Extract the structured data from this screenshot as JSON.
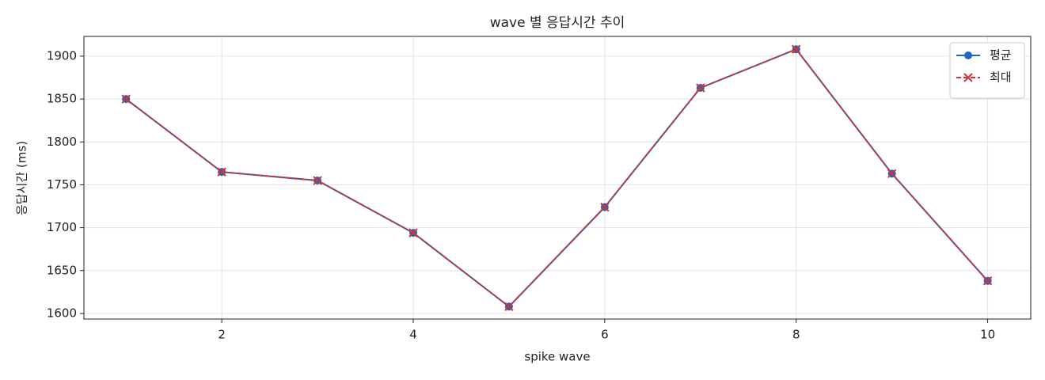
{
  "chart_data": {
    "type": "line",
    "title": "wave 별 응답시간 추이",
    "x_label": "spike wave",
    "y_label": "응답시간 (ms)",
    "x": [
      1,
      2,
      3,
      4,
      5,
      6,
      7,
      8,
      9,
      10
    ],
    "series": [
      {
        "name": "평균",
        "color": "#1f66c0",
        "marker": "o",
        "linestyle": "solid",
        "values": [
          1850,
          1765,
          1755,
          1694,
          1608,
          1724,
          1863,
          1908,
          1763,
          1638
        ]
      },
      {
        "name": "최대",
        "color": "#d03535",
        "marker": "x",
        "linestyle": "dashed",
        "values": [
          1850,
          1765,
          1755,
          1694,
          1608,
          1724,
          1863,
          1908,
          1763,
          1638
        ]
      }
    ],
    "xlim": [
      0.56,
      10.45
    ],
    "ylim": [
      1593.5,
      1923
    ],
    "xticks": [
      2,
      4,
      6,
      8,
      10
    ],
    "yticks": [
      1600,
      1650,
      1700,
      1750,
      1800,
      1850,
      1900
    ],
    "grid": true,
    "legend": "upper right"
  }
}
